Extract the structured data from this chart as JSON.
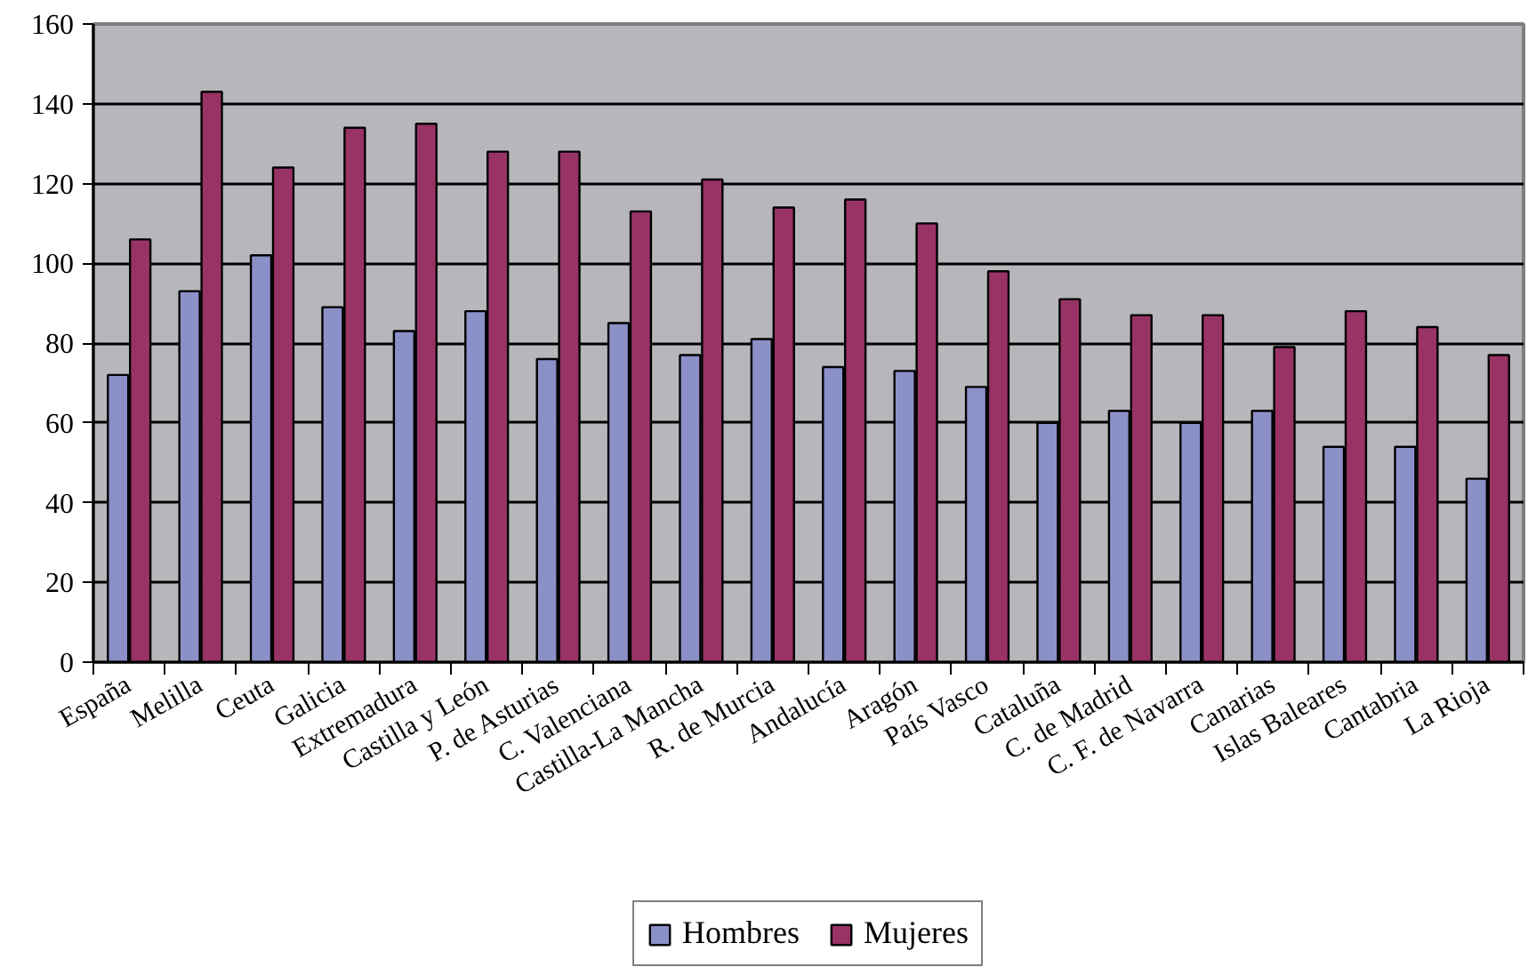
{
  "chart_data": {
    "type": "bar",
    "categories": [
      "España",
      "Melilla",
      "Ceuta",
      "Galicia",
      "Extremadura",
      "Castilla y León",
      "P. de Asturias",
      "C. Valenciana",
      "Castilla-La Mancha",
      "R. de Murcia",
      "Andalucía",
      "Aragón",
      "País Vasco",
      "Cataluña",
      "C. de Madrid",
      "C. F. de Navarra",
      "Canarias",
      "Islas Baleares",
      "Cantabria",
      "La Rioja"
    ],
    "series": [
      {
        "name": "Hombres",
        "color": "#8c90c8",
        "values": [
          72,
          93,
          102,
          89,
          83,
          88,
          76,
          85,
          77,
          81,
          74,
          73,
          69,
          60,
          63,
          60,
          63,
          54,
          54,
          46
        ]
      },
      {
        "name": "Mujeres",
        "color": "#993366",
        "values": [
          106,
          143,
          124,
          134,
          135,
          128,
          128,
          113,
          121,
          114,
          116,
          110,
          98,
          91,
          87,
          87,
          79,
          88,
          84,
          77
        ]
      }
    ],
    "ylim": [
      0,
      160
    ],
    "yticks": [
      0,
      20,
      40,
      60,
      80,
      100,
      120,
      140,
      160
    ],
    "grid": "y",
    "legend": "bottom"
  }
}
